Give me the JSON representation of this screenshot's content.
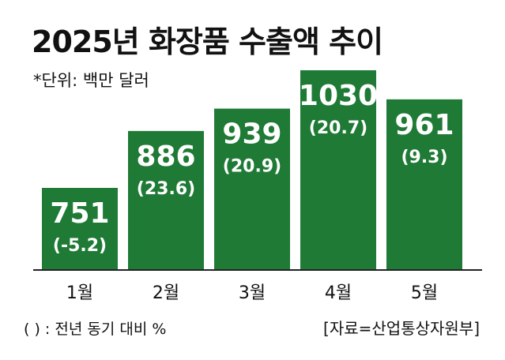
{
  "title": "2025년 화장품 수출액 추이",
  "unit_note": "*단위: 백만 달러",
  "footnote": "( ) : 전년 동기 대비 %",
  "source": "[자료=산업통상자원부]",
  "colors": {
    "bar": "#1f7a36",
    "bar_text": "#ffffff",
    "baseline": "#222222"
  },
  "chart_data": {
    "type": "bar",
    "title": "2025년 화장품 수출액 추이",
    "categories": [
      "1월",
      "2월",
      "3월",
      "4월",
      "5월"
    ],
    "values": [
      751,
      886,
      939,
      1030,
      961
    ],
    "yoy_change": [
      "(-5.2)",
      "(23.6)",
      "(20.9)",
      "(20.7)",
      "(9.3)"
    ],
    "ylabel": "백만 달러",
    "ylim": [
      0,
      1030
    ],
    "grid": false,
    "legend": "none"
  }
}
